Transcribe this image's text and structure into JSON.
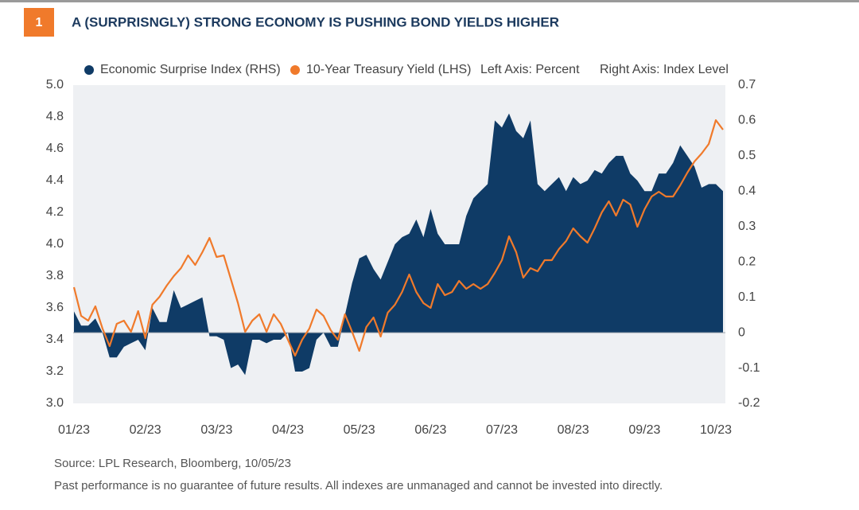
{
  "figure_number": "1",
  "chart_data": {
    "type": "area-line",
    "title": "A (SURPRISNGLY) STRONG ECONOMY IS PUSHING BOND YIELDS HIGHER",
    "y_label": "Left Axis: Percent",
    "y2_label": "Right Axis: Index Level",
    "categories": [
      "01/23",
      null,
      null,
      null,
      null,
      null,
      null,
      null,
      null,
      null,
      "02/23",
      null,
      null,
      null,
      null,
      null,
      null,
      null,
      null,
      null,
      "03/23",
      null,
      null,
      null,
      null,
      null,
      null,
      null,
      null,
      null,
      "04/23",
      null,
      null,
      null,
      null,
      null,
      null,
      null,
      null,
      null,
      "05/23",
      null,
      null,
      null,
      null,
      null,
      null,
      null,
      null,
      null,
      "06/23",
      null,
      null,
      null,
      null,
      null,
      null,
      null,
      null,
      null,
      "07/23",
      null,
      null,
      null,
      null,
      null,
      null,
      null,
      null,
      null,
      "08/23",
      null,
      null,
      null,
      null,
      null,
      null,
      null,
      null,
      null,
      "09/23",
      null,
      null,
      null,
      null,
      null,
      null,
      null,
      null,
      null,
      "10/23",
      null
    ],
    "series": [
      {
        "name": "Economic Surprise Index (RHS)",
        "color": "#0f3b66",
        "kind": "area",
        "axis": "y2",
        "values": [
          0.06,
          0.02,
          0.02,
          0.04,
          0.0,
          -0.07,
          -0.07,
          -0.04,
          -0.03,
          -0.02,
          -0.05,
          0.07,
          0.03,
          0.03,
          0.12,
          0.07,
          0.08,
          0.09,
          0.1,
          -0.01,
          -0.01,
          -0.02,
          -0.1,
          -0.09,
          -0.12,
          -0.02,
          -0.02,
          -0.03,
          -0.02,
          -0.02,
          0.0,
          -0.11,
          -0.11,
          -0.1,
          -0.02,
          0.0,
          -0.04,
          -0.04,
          0.05,
          0.14,
          0.21,
          0.22,
          0.18,
          0.15,
          0.2,
          0.25,
          0.27,
          0.28,
          0.32,
          0.27,
          0.35,
          0.28,
          0.25,
          0.25,
          0.25,
          0.33,
          0.38,
          0.4,
          0.42,
          0.6,
          0.58,
          0.62,
          0.57,
          0.55,
          0.6,
          0.42,
          0.4,
          0.42,
          0.44,
          0.4,
          0.44,
          0.42,
          0.43,
          0.46,
          0.45,
          0.48,
          0.5,
          0.5,
          0.45,
          0.43,
          0.4,
          0.4,
          0.45,
          0.45,
          0.48,
          0.53,
          0.5,
          0.47,
          0.41,
          0.42,
          0.42,
          0.4
        ]
      },
      {
        "name": "10-Year Treasury Yield (LHS)",
        "color": "#f07a2b",
        "kind": "line",
        "axis": "y",
        "values": [
          3.73,
          3.55,
          3.52,
          3.61,
          3.47,
          3.36,
          3.5,
          3.52,
          3.45,
          3.58,
          3.41,
          3.62,
          3.67,
          3.74,
          3.8,
          3.85,
          3.93,
          3.87,
          3.95,
          4.04,
          3.92,
          3.93,
          3.78,
          3.63,
          3.45,
          3.52,
          3.56,
          3.45,
          3.56,
          3.5,
          3.4,
          3.3,
          3.4,
          3.47,
          3.59,
          3.55,
          3.46,
          3.4,
          3.56,
          3.45,
          3.33,
          3.48,
          3.54,
          3.42,
          3.57,
          3.62,
          3.7,
          3.81,
          3.7,
          3.63,
          3.6,
          3.75,
          3.68,
          3.7,
          3.77,
          3.72,
          3.75,
          3.72,
          3.75,
          3.82,
          3.9,
          4.05,
          3.95,
          3.79,
          3.85,
          3.83,
          3.9,
          3.9,
          3.97,
          4.02,
          4.1,
          4.05,
          4.01,
          4.1,
          4.2,
          4.27,
          4.18,
          4.28,
          4.25,
          4.11,
          4.22,
          4.3,
          4.33,
          4.3,
          4.3,
          4.37,
          4.45,
          4.52,
          4.57,
          4.63,
          4.78,
          4.72
        ]
      }
    ],
    "ylim": [
      3.0,
      5.0
    ],
    "yticks": [
      {
        "value": 3.0,
        "label": "3.0"
      },
      3.2,
      3.4,
      3.6,
      3.8,
      {
        "value": 4.0,
        "label": "4.0"
      },
      4.2,
      4.4,
      4.6,
      4.8,
      {
        "value": 5.0,
        "label": "5.0"
      }
    ],
    "y2lim": [
      -0.2,
      0.7
    ],
    "y2ticks": [
      -0.2,
      -0.1,
      0,
      0.1,
      0.2,
      0.3,
      0.4,
      0.5,
      0.6,
      0.7
    ],
    "grid": false,
    "legend": "top"
  },
  "source": "Source: LPL Research, Bloomberg,  10/05/23",
  "disclaimer": "Past performance is no guarantee of future results. All indexes are unmanaged and cannot be invested into directly."
}
